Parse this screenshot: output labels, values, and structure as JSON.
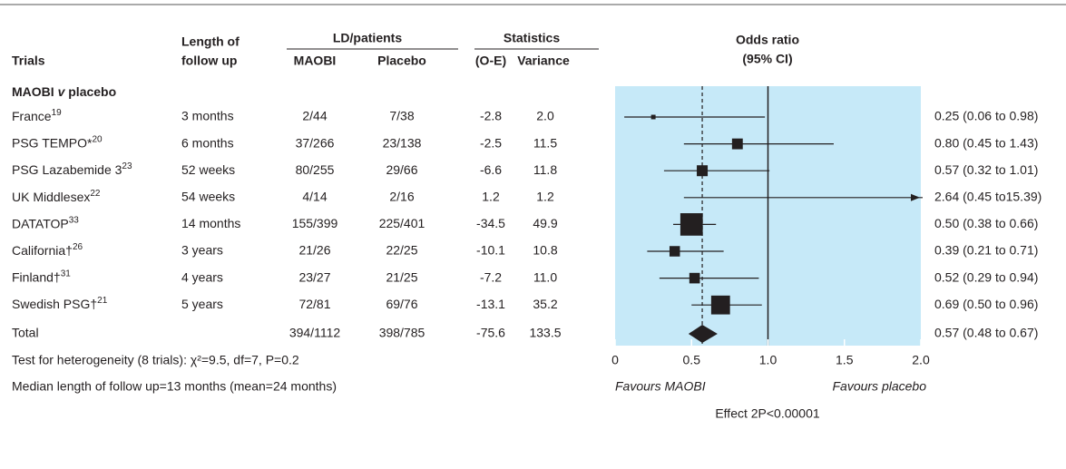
{
  "chart_data": {
    "type": "forest",
    "columns": {
      "trials": "Trials",
      "follow_up": [
        "Length of",
        "follow up"
      ],
      "ld": "LD/patients",
      "maobi": "MAOBI",
      "placebo": "Placebo",
      "stats": "Statistics",
      "oe": "(O-E)",
      "variance": "Variance",
      "or": [
        "Odds ratio",
        "(95% CI)"
      ]
    },
    "subgroup": [
      "MAOBI ",
      "v",
      " placebo"
    ],
    "categories": [
      "France",
      "PSG TEMPO*",
      "PSG Lazabemide 3",
      "UK Middlesex",
      "DATATOP",
      "California†",
      "Finland†",
      "Swedish PSG†"
    ],
    "refs": [
      "19",
      "20",
      "23",
      "22",
      "33",
      "26",
      "31",
      "21"
    ],
    "follow_up": [
      "3 months",
      "6 months",
      "52 weeks",
      "54 weeks",
      "14 months",
      "3 years",
      "4 years",
      "5 years"
    ],
    "maobi": [
      "2/44",
      "37/266",
      "80/255",
      "4/14",
      "155/399",
      "21/26",
      "23/27",
      "72/81"
    ],
    "placebo": [
      "7/38",
      "23/138",
      "29/66",
      "2/16",
      "225/401",
      "22/25",
      "21/25",
      "69/76"
    ],
    "oe": [
      -2.8,
      -2.5,
      -6.6,
      1.2,
      -34.5,
      -10.1,
      -7.2,
      -13.1
    ],
    "variance": [
      {
        "value": 2,
        "label": "2.0"
      },
      11.5,
      11.8,
      1.2,
      49.9,
      10.8,
      {
        "value": 11,
        "label": "11.0"
      },
      35.2
    ],
    "values": [
      0.25,
      0.8,
      0.57,
      2.64,
      0.5,
      0.39,
      0.52,
      0.69
    ],
    "ci_low": [
      0.06,
      0.45,
      0.32,
      0.45,
      0.38,
      0.21,
      0.29,
      0.5
    ],
    "ci_high": [
      0.98,
      1.43,
      1.01,
      15.39,
      0.66,
      0.71,
      0.94,
      0.96
    ],
    "value_labels": [
      "0.25 (0.06 to 0.98)",
      "0.80 (0.45 to 1.43)",
      "0.57 (0.32 to 1.01)",
      "2.64 (0.45 to15.39)",
      "0.50 (0.38 to 0.66)",
      "0.39 (0.21 to 0.71)",
      "0.52 (0.29 to 0.94)",
      "0.69 (0.50 to 0.96)"
    ],
    "total": {
      "label": "Total",
      "maobi": "394/1112",
      "placebo": "398/785",
      "oe": -75.6,
      "variance": 133.5,
      "value": 0.57,
      "ci_low": 0.48,
      "ci_high": 0.67,
      "value_label": "0.57 (0.48 to 0.67)"
    },
    "notes": [
      "Test for heterogeneity (8 trials): χ²=9.5, df=7, P=0.2",
      "Median length of follow up=13 months (mean=24 months)"
    ],
    "xlim": [
      0,
      2
    ],
    "xticks": [
      0,
      0.5,
      {
        "value": 1,
        "label": "1.0"
      },
      {
        "value": 1.5,
        "label": "1.5"
      },
      {
        "value": 2,
        "label": "2.0"
      }
    ],
    "ref_line": 1,
    "favours": [
      "Favours MAOBI",
      "Favours placebo"
    ],
    "effect": "Effect 2P<0.00001",
    "color": "#c6e9f8"
  }
}
